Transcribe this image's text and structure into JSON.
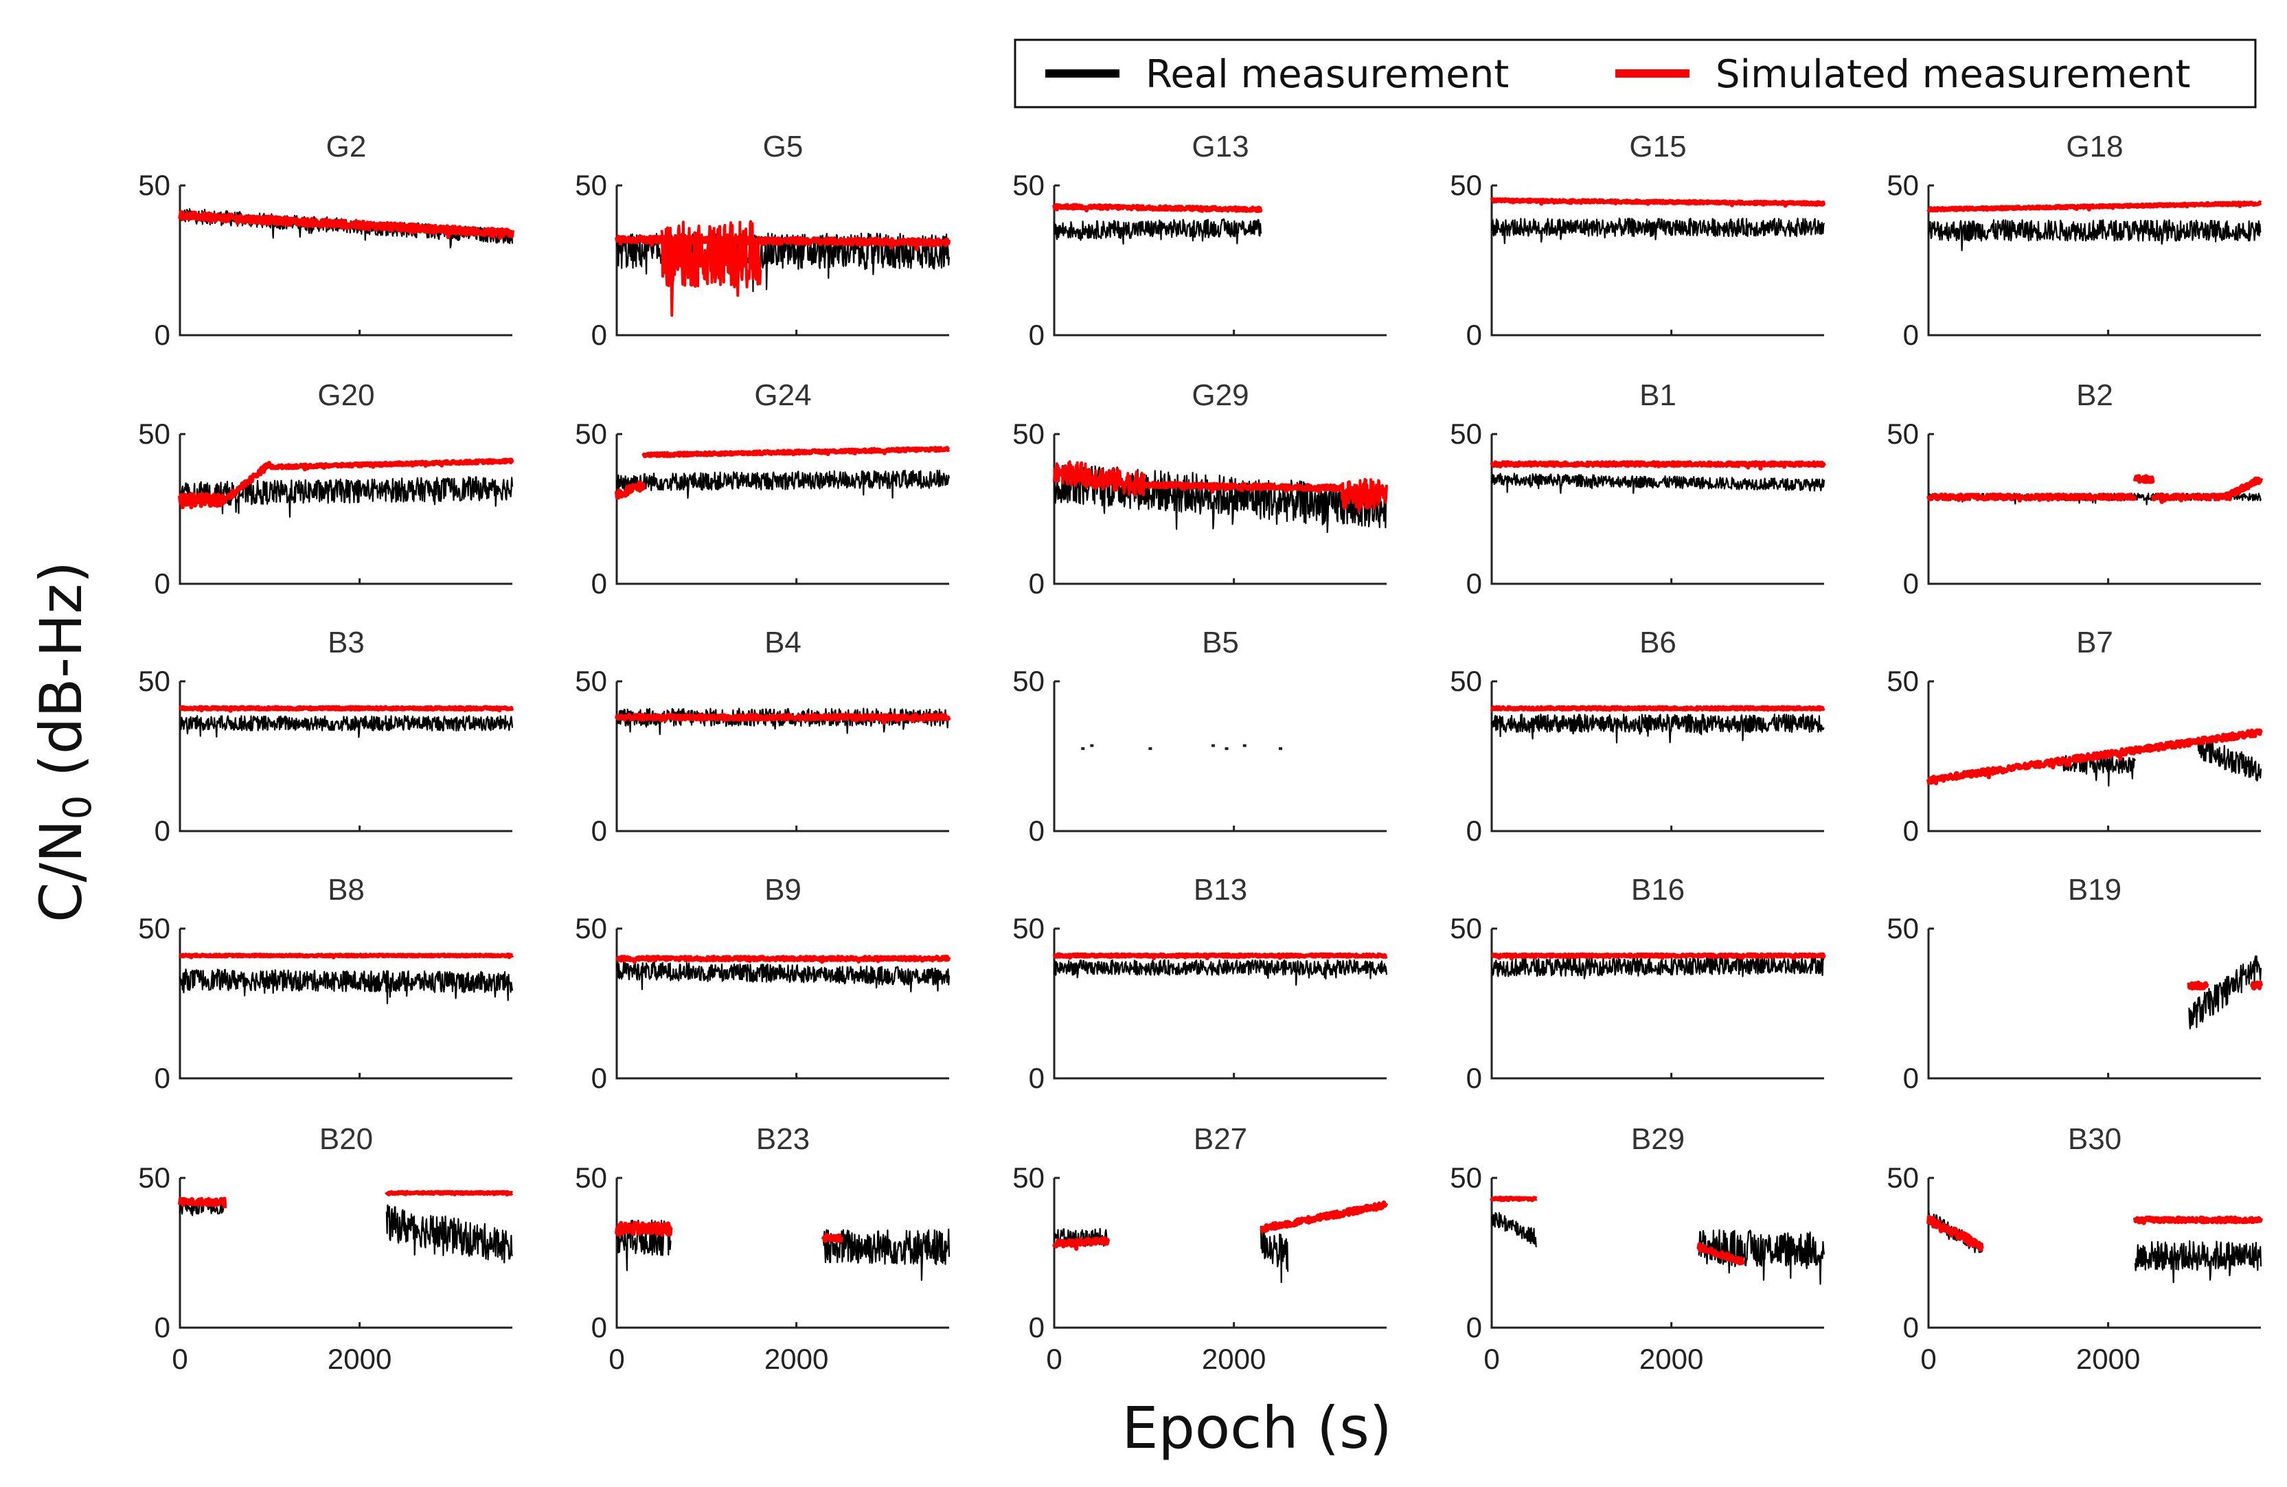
{
  "chart_data": {
    "type": "line",
    "xlabel": "Epoch (s)",
    "ylabel_main": "C/N",
    "ylabel_sub": "0",
    "ylabel_unit": " (dB-Hz)",
    "xlim": [
      0,
      3700
    ],
    "ylim": [
      0,
      50
    ],
    "xticks": [
      "0",
      "2000"
    ],
    "yticks": [
      "0",
      "50"
    ],
    "grid": false,
    "legend": {
      "placement": "top-right",
      "entries": [
        {
          "name": "Real measurement",
          "color": "#000000"
        },
        {
          "name": "Simulated measurement",
          "color": "#ff0000"
        }
      ]
    },
    "panels": [
      {
        "title": "G2",
        "real": [
          [
            0,
            3700,
            40,
            33,
            2.5
          ]
        ],
        "sim": [
          [
            0,
            3700,
            40,
            34,
            1.2
          ]
        ]
      },
      {
        "title": "G5",
        "real": [
          [
            0,
            3700,
            28,
            28,
            6
          ]
        ],
        "sim": [
          [
            0,
            3700,
            32,
            31,
            1
          ],
          [
            500,
            1600,
            27,
            27,
            11
          ]
        ]
      },
      {
        "title": "G13",
        "real": [
          [
            0,
            2300,
            35,
            36,
            3
          ]
        ],
        "sim": [
          [
            0,
            2300,
            43,
            42,
            0.6
          ]
        ]
      },
      {
        "title": "G15",
        "real": [
          [
            0,
            3700,
            36,
            36,
            3
          ]
        ],
        "sim": [
          [
            0,
            3700,
            45,
            44,
            0.4
          ]
        ]
      },
      {
        "title": "G18",
        "real": [
          [
            0,
            3700,
            35,
            35,
            3.5
          ]
        ],
        "sim": [
          [
            0,
            3700,
            42,
            44,
            0.4
          ]
        ]
      },
      {
        "title": "G20",
        "real": [
          [
            0,
            3700,
            30,
            32,
            4
          ]
        ],
        "sim": [
          [
            0,
            500,
            28,
            28,
            2
          ],
          [
            500,
            1000,
            28,
            40,
            1
          ],
          [
            1000,
            3700,
            39,
            41,
            0.5
          ]
        ]
      },
      {
        "title": "G24",
        "real": [
          [
            0,
            3700,
            34,
            35,
            3
          ]
        ],
        "sim": [
          [
            0,
            300,
            30,
            33,
            1.5
          ],
          [
            300,
            3700,
            43,
            45,
            0.5
          ]
        ]
      },
      {
        "title": "G29",
        "real": [
          [
            0,
            3700,
            34,
            25,
            7
          ]
        ],
        "sim": [
          [
            0,
            1000,
            38,
            33,
            4
          ],
          [
            1000,
            3200,
            33,
            32,
            0.8
          ],
          [
            3200,
            3700,
            30,
            30,
            5
          ]
        ]
      },
      {
        "title": "B1",
        "real": [
          [
            0,
            3700,
            35,
            33,
            2
          ]
        ],
        "sim": [
          [
            0,
            3700,
            40,
            40,
            0.6
          ]
        ]
      },
      {
        "title": "B2",
        "real": [
          [
            0,
            3700,
            29,
            29,
            1.2
          ]
        ],
        "sim": [
          [
            0,
            2300,
            29,
            29,
            0.8
          ],
          [
            2300,
            2500,
            35,
            35,
            1
          ],
          [
            2500,
            3300,
            29,
            29,
            0.8
          ],
          [
            3300,
            3700,
            29,
            35,
            1
          ]
        ]
      },
      {
        "title": "B3",
        "real": [
          [
            0,
            3700,
            36,
            36,
            2.5
          ]
        ],
        "sim": [
          [
            0,
            3700,
            41,
            41,
            0.4
          ]
        ]
      },
      {
        "title": "B4",
        "real": [
          [
            0,
            3700,
            38,
            38,
            3
          ]
        ],
        "sim": [
          [
            0,
            3700,
            38,
            38,
            0.8
          ]
        ]
      },
      {
        "title": "B5",
        "real": [],
        "sim": []
      },
      {
        "title": "B6",
        "real": [
          [
            0,
            3700,
            36,
            36,
            3
          ]
        ],
        "sim": [
          [
            0,
            3700,
            41,
            41,
            0.4
          ]
        ]
      },
      {
        "title": "B7",
        "real": [
          [
            1500,
            2300,
            23,
            22,
            3
          ],
          [
            3000,
            3700,
            28,
            20,
            4
          ]
        ],
        "sim": [
          [
            0,
            3700,
            17,
            33,
            1
          ]
        ]
      },
      {
        "title": "B8",
        "real": [
          [
            0,
            3700,
            33,
            32,
            3.5
          ]
        ],
        "sim": [
          [
            0,
            3700,
            41,
            41,
            0.3
          ]
        ]
      },
      {
        "title": "B9",
        "real": [
          [
            0,
            3700,
            36,
            34,
            3
          ]
        ],
        "sim": [
          [
            0,
            3700,
            40,
            40,
            0.6
          ]
        ]
      },
      {
        "title": "B13",
        "real": [
          [
            0,
            3700,
            37,
            37,
            2.5
          ]
        ],
        "sim": [
          [
            0,
            3700,
            41,
            41,
            0.4
          ]
        ]
      },
      {
        "title": "B16",
        "real": [
          [
            0,
            3700,
            37,
            38,
            3
          ]
        ],
        "sim": [
          [
            0,
            3700,
            41,
            41,
            0.4
          ]
        ]
      },
      {
        "title": "B19",
        "real": [
          [
            2900,
            3700,
            20,
            38,
            5
          ]
        ],
        "sim": [
          [
            2900,
            3100,
            31,
            31,
            1
          ],
          [
            3600,
            3700,
            31,
            31,
            1
          ]
        ]
      },
      {
        "title": "B20",
        "real": [
          [
            0,
            500,
            40,
            40,
            2
          ],
          [
            2300,
            3700,
            35,
            27,
            6
          ]
        ],
        "sim": [
          [
            0,
            500,
            42,
            42,
            1
          ],
          [
            2300,
            3700,
            45,
            45,
            0.3
          ]
        ]
      },
      {
        "title": "B23",
        "real": [
          [
            0,
            600,
            30,
            30,
            6
          ],
          [
            2300,
            3700,
            27,
            27,
            6
          ]
        ],
        "sim": [
          [
            0,
            600,
            33,
            33,
            2
          ],
          [
            2300,
            2500,
            30,
            30,
            1
          ]
        ]
      },
      {
        "title": "B27",
        "real": [
          [
            0,
            600,
            30,
            30,
            3
          ],
          [
            2300,
            2600,
            29,
            24,
            6
          ]
        ],
        "sim": [
          [
            0,
            600,
            28,
            29,
            1
          ],
          [
            2300,
            3700,
            33,
            41,
            1
          ]
        ]
      },
      {
        "title": "B29",
        "real": [
          [
            0,
            500,
            37,
            30,
            3
          ],
          [
            2300,
            3700,
            27,
            26,
            6
          ]
        ],
        "sim": [
          [
            0,
            500,
            43,
            43,
            0.4
          ],
          [
            2300,
            2800,
            27,
            22,
            1
          ]
        ]
      },
      {
        "title": "B30",
        "real": [
          [
            0,
            600,
            37,
            26,
            2.5
          ],
          [
            2300,
            3700,
            24,
            24,
            5
          ]
        ],
        "sim": [
          [
            0,
            600,
            36,
            27,
            1.5
          ],
          [
            2300,
            3700,
            36,
            36,
            0.8
          ]
        ]
      }
    ]
  }
}
